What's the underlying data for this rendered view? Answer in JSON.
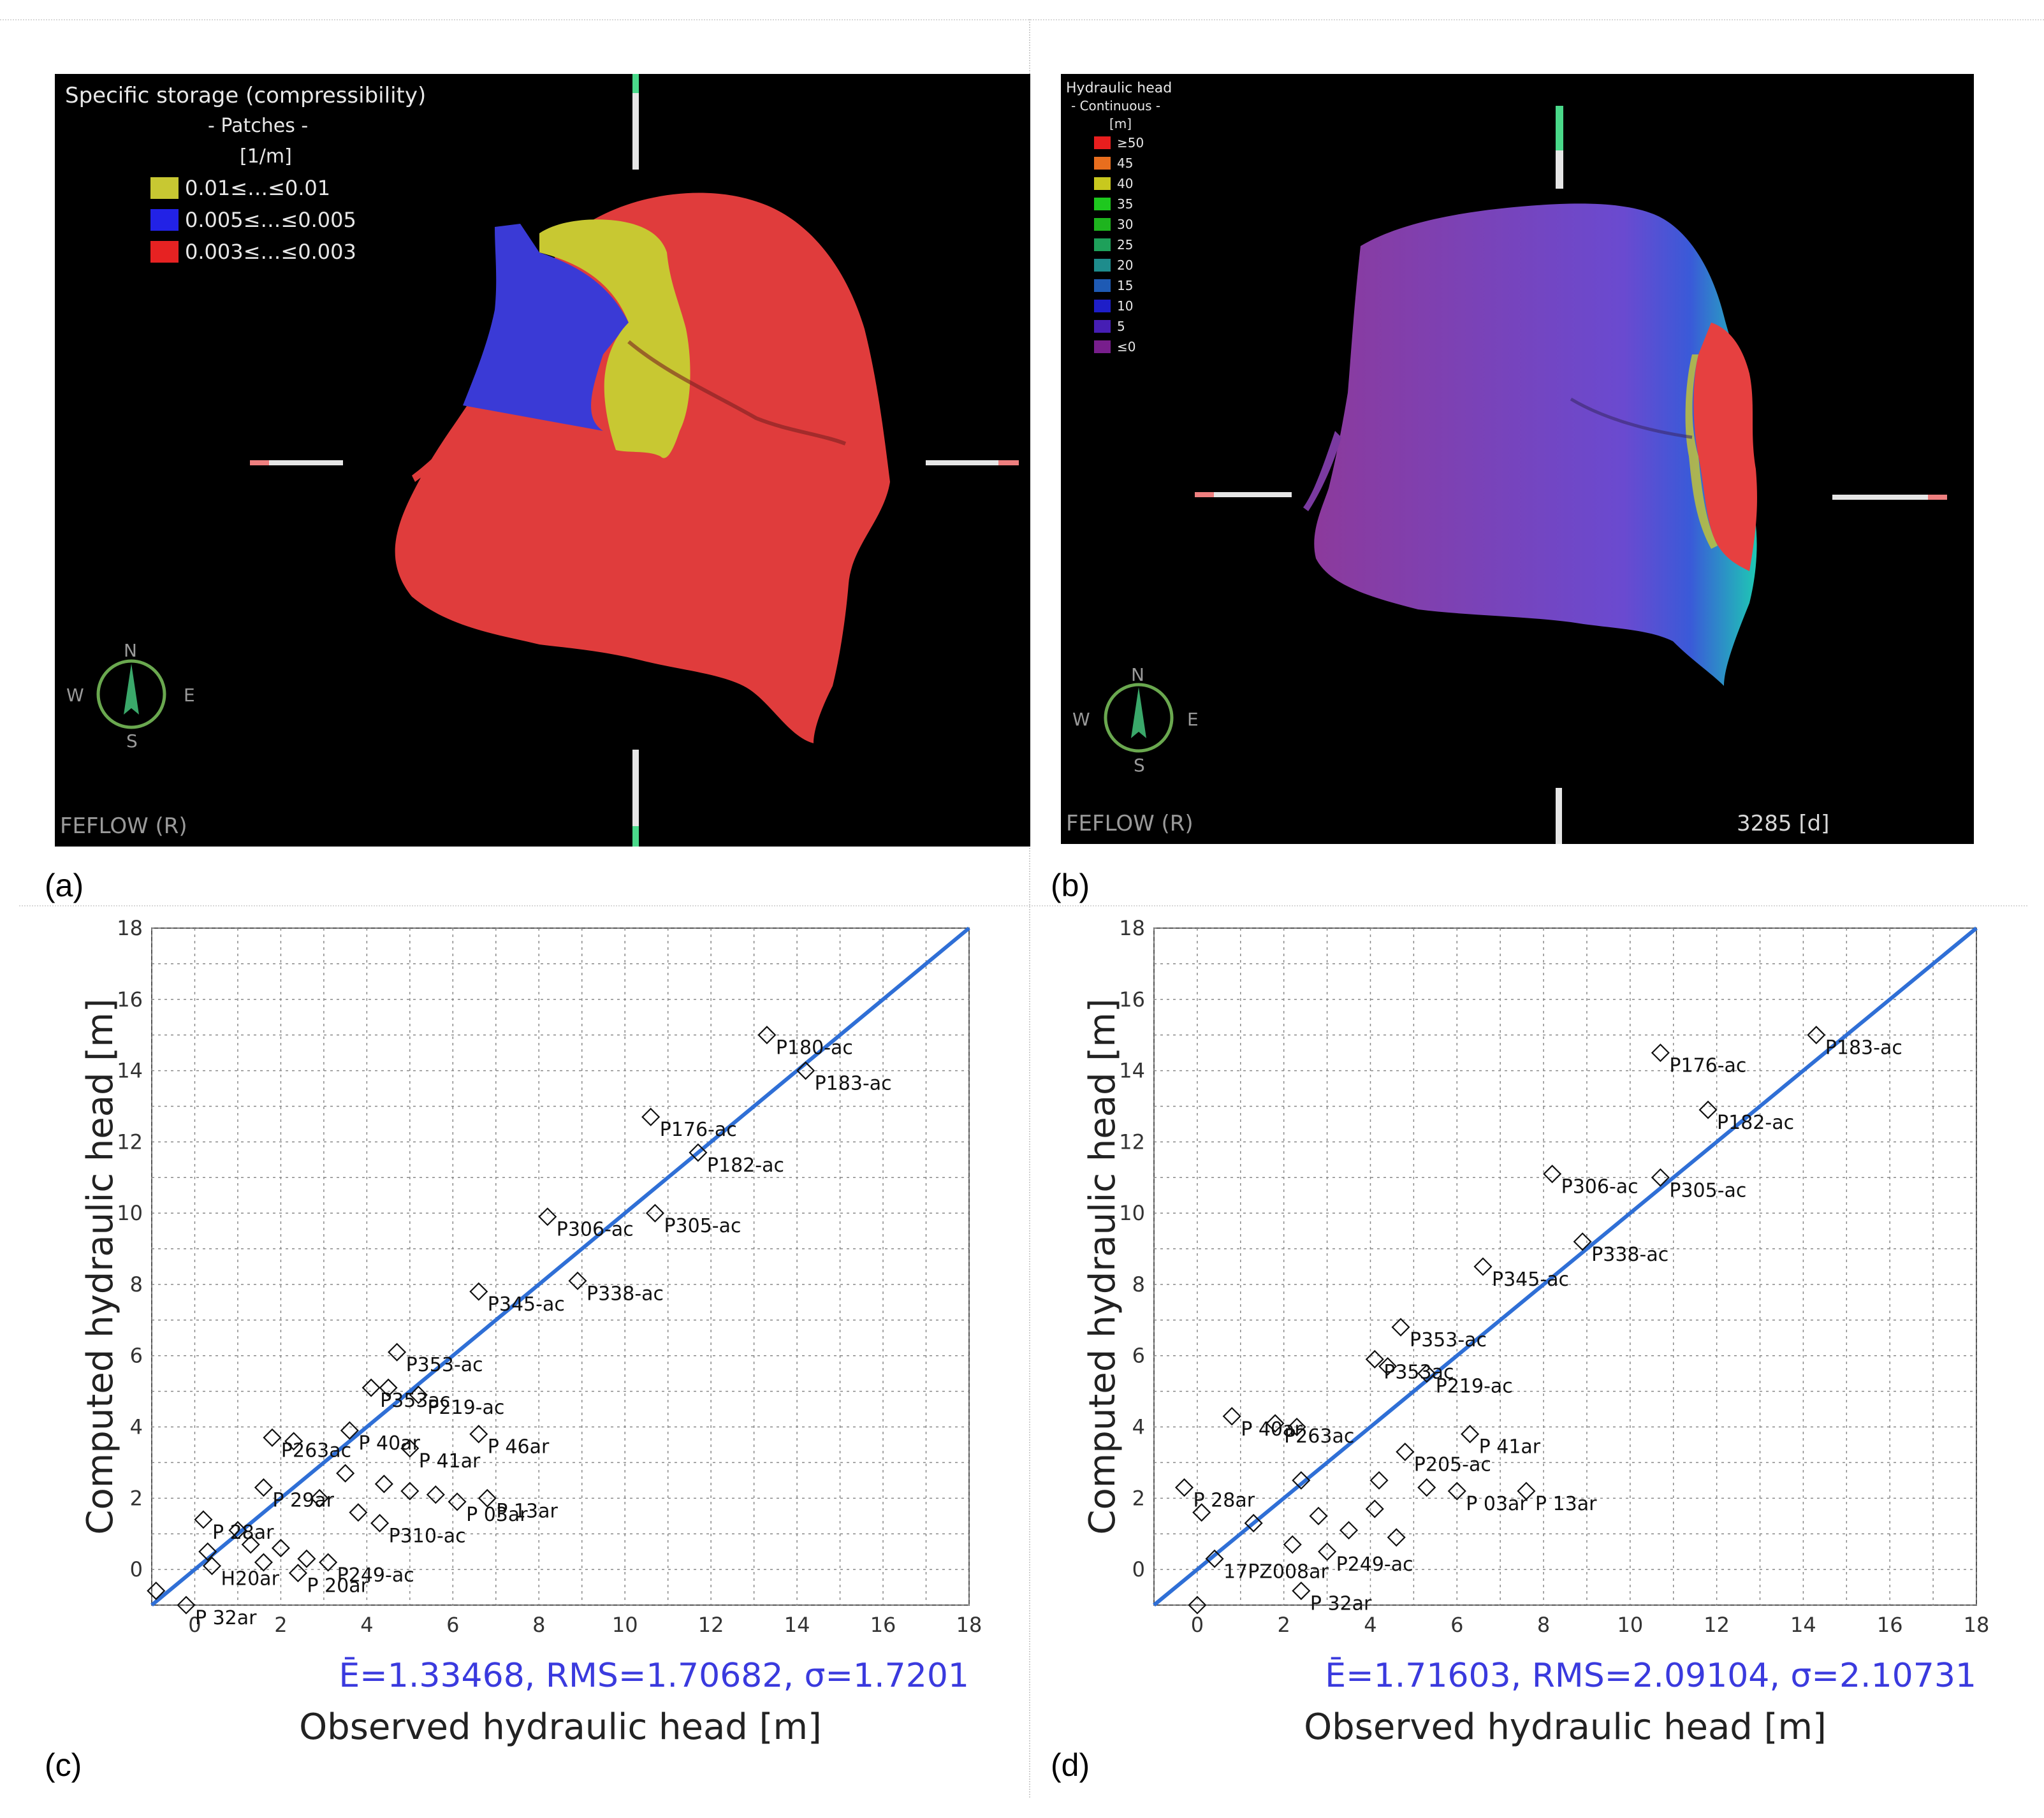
{
  "panel_a": {
    "label": "(a)",
    "legend_title": "Specific storage (compressibility)",
    "legend_sub": "- Patches -",
    "legend_unit": "[1/m]",
    "legend_items": [
      {
        "label": "0.01≤…≤0.01",
        "color": "#c8c832"
      },
      {
        "label": "0.005≤…≤0.005",
        "color": "#2222e6"
      },
      {
        "label": "0.003≤…≤0.003",
        "color": "#e62222"
      }
    ],
    "brand": "FEFLOW (R)",
    "compass": {
      "n": "N",
      "s": "S",
      "e": "E",
      "w": "W"
    }
  },
  "panel_b": {
    "label": "(b)",
    "legend_title": "Hydraulic head",
    "legend_sub": "- Continuous -",
    "legend_unit": "[m]",
    "legend_items": [
      {
        "label": "≥50",
        "color": "#e81e1e"
      },
      {
        "label": "45",
        "color": "#e86e1e"
      },
      {
        "label": "40",
        "color": "#c8c81e"
      },
      {
        "label": "35",
        "color": "#1ec81e"
      },
      {
        "label": "30",
        "color": "#1eb41e"
      },
      {
        "label": "25",
        "color": "#1ea05a"
      },
      {
        "label": "20",
        "color": "#1e8c8c"
      },
      {
        "label": "15",
        "color": "#1e5ab4"
      },
      {
        "label": "10",
        "color": "#1e1ec8"
      },
      {
        "label": "5",
        "color": "#461eb4"
      },
      {
        "label": "≤0",
        "color": "#781e8c"
      }
    ],
    "brand": "FEFLOW (R)",
    "time": "3285 [d]",
    "compass": {
      "n": "N",
      "s": "S",
      "e": "E",
      "w": "W"
    }
  },
  "panel_c": {
    "label": "(c)"
  },
  "panel_d": {
    "label": "(d)"
  },
  "chart_data": [
    {
      "type": "scatter",
      "panel": "(c)",
      "xlabel": "Observed hydraulic head [m]",
      "ylabel": "Computed hydraulic head [m]",
      "xlim": [
        -1,
        18
      ],
      "ylim": [
        -1,
        18
      ],
      "xticks": [
        0,
        2,
        4,
        6,
        8,
        10,
        12,
        14,
        16,
        18
      ],
      "yticks": [
        0,
        2,
        4,
        6,
        8,
        10,
        12,
        14,
        16,
        18
      ],
      "grid": true,
      "stats": "Ē=1.33468, RMS=1.70682, σ=1.7201",
      "line": {
        "name": "1:1 line",
        "x": [
          -1,
          18
        ],
        "y": [
          -1,
          18
        ],
        "color": "#2f6fd6"
      },
      "points": [
        {
          "x": 13.3,
          "y": 15.0,
          "label": "P180-ac"
        },
        {
          "x": 14.2,
          "y": 14.0,
          "label": "P183-ac"
        },
        {
          "x": 10.6,
          "y": 12.7,
          "label": "P176-ac"
        },
        {
          "x": 11.7,
          "y": 11.7,
          "label": "P182-ac"
        },
        {
          "x": 8.2,
          "y": 9.9,
          "label": "P306-ac"
        },
        {
          "x": 10.7,
          "y": 10.0,
          "label": "P305-ac"
        },
        {
          "x": 6.6,
          "y": 7.8,
          "label": "P345-ac"
        },
        {
          "x": 8.9,
          "y": 8.1,
          "label": "P338-ac"
        },
        {
          "x": 4.7,
          "y": 6.1,
          "label": "P353-ac"
        },
        {
          "x": 4.1,
          "y": 5.1,
          "label": "P353ac"
        },
        {
          "x": 4.5,
          "y": 5.1,
          "label": ""
        },
        {
          "x": 5.2,
          "y": 4.9,
          "label": "P219-ac"
        },
        {
          "x": 6.6,
          "y": 3.8,
          "label": "P 46ar"
        },
        {
          "x": 3.6,
          "y": 3.9,
          "label": "P 40ar"
        },
        {
          "x": 5.0,
          "y": 3.4,
          "label": "P 41ar"
        },
        {
          "x": 1.8,
          "y": 3.7,
          "label": "P263ac"
        },
        {
          "x": 2.3,
          "y": 3.6,
          "label": ""
        },
        {
          "x": 3.5,
          "y": 2.7,
          "label": ""
        },
        {
          "x": 4.4,
          "y": 2.4,
          "label": ""
        },
        {
          "x": 5.0,
          "y": 2.2,
          "label": ""
        },
        {
          "x": 5.6,
          "y": 2.1,
          "label": ""
        },
        {
          "x": 6.1,
          "y": 1.9,
          "label": "P 03ar"
        },
        {
          "x": 6.8,
          "y": 2.0,
          "label": "P 13ar"
        },
        {
          "x": 1.6,
          "y": 2.3,
          "label": "P 29ar"
        },
        {
          "x": 2.9,
          "y": 2.0,
          "label": ""
        },
        {
          "x": 3.8,
          "y": 1.6,
          "label": ""
        },
        {
          "x": 4.3,
          "y": 1.3,
          "label": "P310-ac"
        },
        {
          "x": 0.2,
          "y": 1.4,
          "label": "P 28ar"
        },
        {
          "x": 1.0,
          "y": 1.1,
          "label": ""
        },
        {
          "x": 1.3,
          "y": 0.7,
          "label": ""
        },
        {
          "x": 2.0,
          "y": 0.6,
          "label": ""
        },
        {
          "x": 2.6,
          "y": 0.3,
          "label": ""
        },
        {
          "x": 3.1,
          "y": 0.2,
          "label": "P249-ac"
        },
        {
          "x": 0.3,
          "y": 0.5,
          "label": ""
        },
        {
          "x": 0.4,
          "y": 0.1,
          "label": "H20ar"
        },
        {
          "x": 1.6,
          "y": 0.2,
          "label": ""
        },
        {
          "x": 2.4,
          "y": -0.1,
          "label": "P 20ar"
        },
        {
          "x": -0.9,
          "y": -0.6,
          "label": ""
        },
        {
          "x": -0.2,
          "y": -1.0,
          "label": "P 32ar"
        }
      ]
    },
    {
      "type": "scatter",
      "panel": "(d)",
      "xlabel": "Observed hydraulic head [m]",
      "ylabel": "Computed hydraulic head [m]",
      "xlim": [
        -1,
        18
      ],
      "ylim": [
        -1,
        18
      ],
      "xticks": [
        0,
        2,
        4,
        6,
        8,
        10,
        12,
        14,
        16,
        18
      ],
      "yticks": [
        0,
        2,
        4,
        6,
        8,
        10,
        12,
        14,
        16,
        18
      ],
      "grid": true,
      "stats": "Ē=1.71603, RMS=2.09104, σ=2.10731",
      "line": {
        "name": "1:1 line",
        "x": [
          -1,
          18
        ],
        "y": [
          -1,
          18
        ],
        "color": "#2f6fd6"
      },
      "points": [
        {
          "x": 14.3,
          "y": 15.0,
          "label": "P183-ac"
        },
        {
          "x": 10.7,
          "y": 14.5,
          "label": "P176-ac"
        },
        {
          "x": 11.8,
          "y": 12.9,
          "label": "P182-ac"
        },
        {
          "x": 8.2,
          "y": 11.1,
          "label": "P306-ac"
        },
        {
          "x": 10.7,
          "y": 11.0,
          "label": "P305-ac"
        },
        {
          "x": 8.9,
          "y": 9.2,
          "label": "P338-ac"
        },
        {
          "x": 6.6,
          "y": 8.5,
          "label": "P345-ac"
        },
        {
          "x": 4.7,
          "y": 6.8,
          "label": "P353-ac"
        },
        {
          "x": 4.1,
          "y": 5.9,
          "label": "P353ac"
        },
        {
          "x": 4.4,
          "y": 5.7,
          "label": ""
        },
        {
          "x": 5.3,
          "y": 5.5,
          "label": "P219-ac"
        },
        {
          "x": 0.8,
          "y": 4.3,
          "label": "P 40ar"
        },
        {
          "x": 1.8,
          "y": 4.1,
          "label": "P263ac"
        },
        {
          "x": 2.3,
          "y": 4.0,
          "label": ""
        },
        {
          "x": 6.3,
          "y": 3.8,
          "label": "P 41ar"
        },
        {
          "x": 4.8,
          "y": 3.3,
          "label": "P205-ac"
        },
        {
          "x": 4.2,
          "y": 2.5,
          "label": ""
        },
        {
          "x": 2.4,
          "y": 2.5,
          "label": ""
        },
        {
          "x": 5.3,
          "y": 2.3,
          "label": ""
        },
        {
          "x": 6.0,
          "y": 2.2,
          "label": "P 03ar"
        },
        {
          "x": 7.6,
          "y": 2.2,
          "label": "P 13ar"
        },
        {
          "x": -0.3,
          "y": 2.3,
          "label": "P 28ar"
        },
        {
          "x": 0.1,
          "y": 1.6,
          "label": ""
        },
        {
          "x": 1.3,
          "y": 1.3,
          "label": ""
        },
        {
          "x": 2.8,
          "y": 1.5,
          "label": ""
        },
        {
          "x": 3.5,
          "y": 1.1,
          "label": ""
        },
        {
          "x": 4.1,
          "y": 1.7,
          "label": ""
        },
        {
          "x": 4.6,
          "y": 0.9,
          "label": ""
        },
        {
          "x": 2.2,
          "y": 0.7,
          "label": ""
        },
        {
          "x": 3.0,
          "y": 0.5,
          "label": "P249-ac"
        },
        {
          "x": 0.4,
          "y": 0.3,
          "label": "17PZ008ar"
        },
        {
          "x": 2.4,
          "y": -0.6,
          "label": "P 32ar"
        },
        {
          "x": 0.0,
          "y": -1.0,
          "label": ""
        }
      ]
    }
  ]
}
